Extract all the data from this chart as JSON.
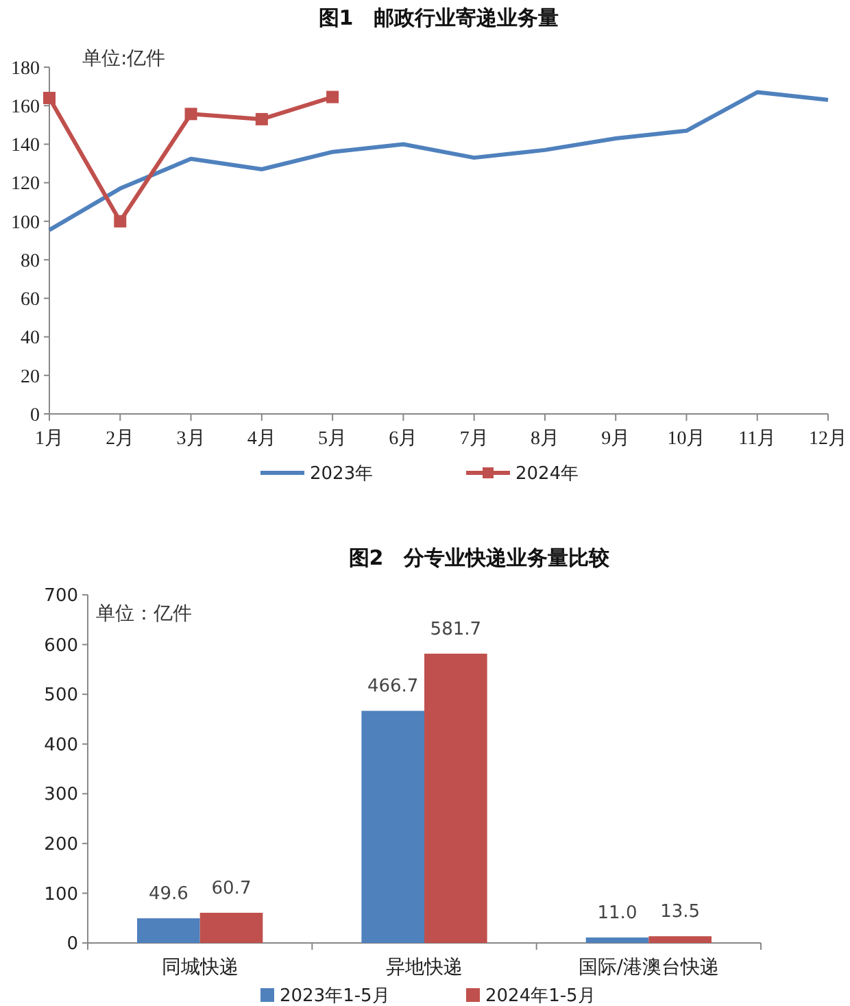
{
  "chart_data": [
    {
      "type": "line",
      "title": "图1　邮政行业寄递业务量",
      "annotations": [
        "单位:亿件"
      ],
      "categories": [
        "1月",
        "2月",
        "3月",
        "4月",
        "5月",
        "6月",
        "7月",
        "8月",
        "9月",
        "10月",
        "11月",
        "12月"
      ],
      "ylim": [
        0,
        180
      ],
      "yticks": [
        0,
        20,
        40,
        60,
        80,
        100,
        120,
        140,
        160,
        180
      ],
      "grid": false,
      "legend": "bottom",
      "series": [
        {
          "name": "2023年",
          "color": "#4f81bd",
          "marker": "none",
          "values": [
            95.5,
            117,
            132.4,
            127,
            136,
            140,
            133,
            137,
            143,
            147,
            167,
            163
          ]
        },
        {
          "name": "2024年",
          "color": "#c0504d",
          "marker": "square",
          "values": [
            164,
            100,
            155.7,
            153,
            164.5,
            null,
            null,
            null,
            null,
            null,
            null,
            null
          ]
        }
      ]
    },
    {
      "type": "bar",
      "title": "图2　分专业快递业务量比较",
      "annotations": [
        "单位：亿件"
      ],
      "categories": [
        "同城快递",
        "异地快递",
        "国际/港澳台快递"
      ],
      "ylim": [
        0,
        700
      ],
      "yticks": [
        0,
        100,
        200,
        300,
        400,
        500,
        600,
        700
      ],
      "grid": false,
      "legend": "bottom",
      "series": [
        {
          "name": "2023年1-5月",
          "color": "#4f81bd",
          "values": [
            49.6,
            466.7,
            11.0
          ],
          "value_labels": [
            "49.6",
            "466.7",
            "11.0"
          ]
        },
        {
          "name": "2024年1-5月",
          "color": "#c0504d",
          "values": [
            60.7,
            581.7,
            13.5
          ],
          "value_labels": [
            "60.7",
            "581.7",
            "13.5"
          ]
        }
      ]
    }
  ]
}
